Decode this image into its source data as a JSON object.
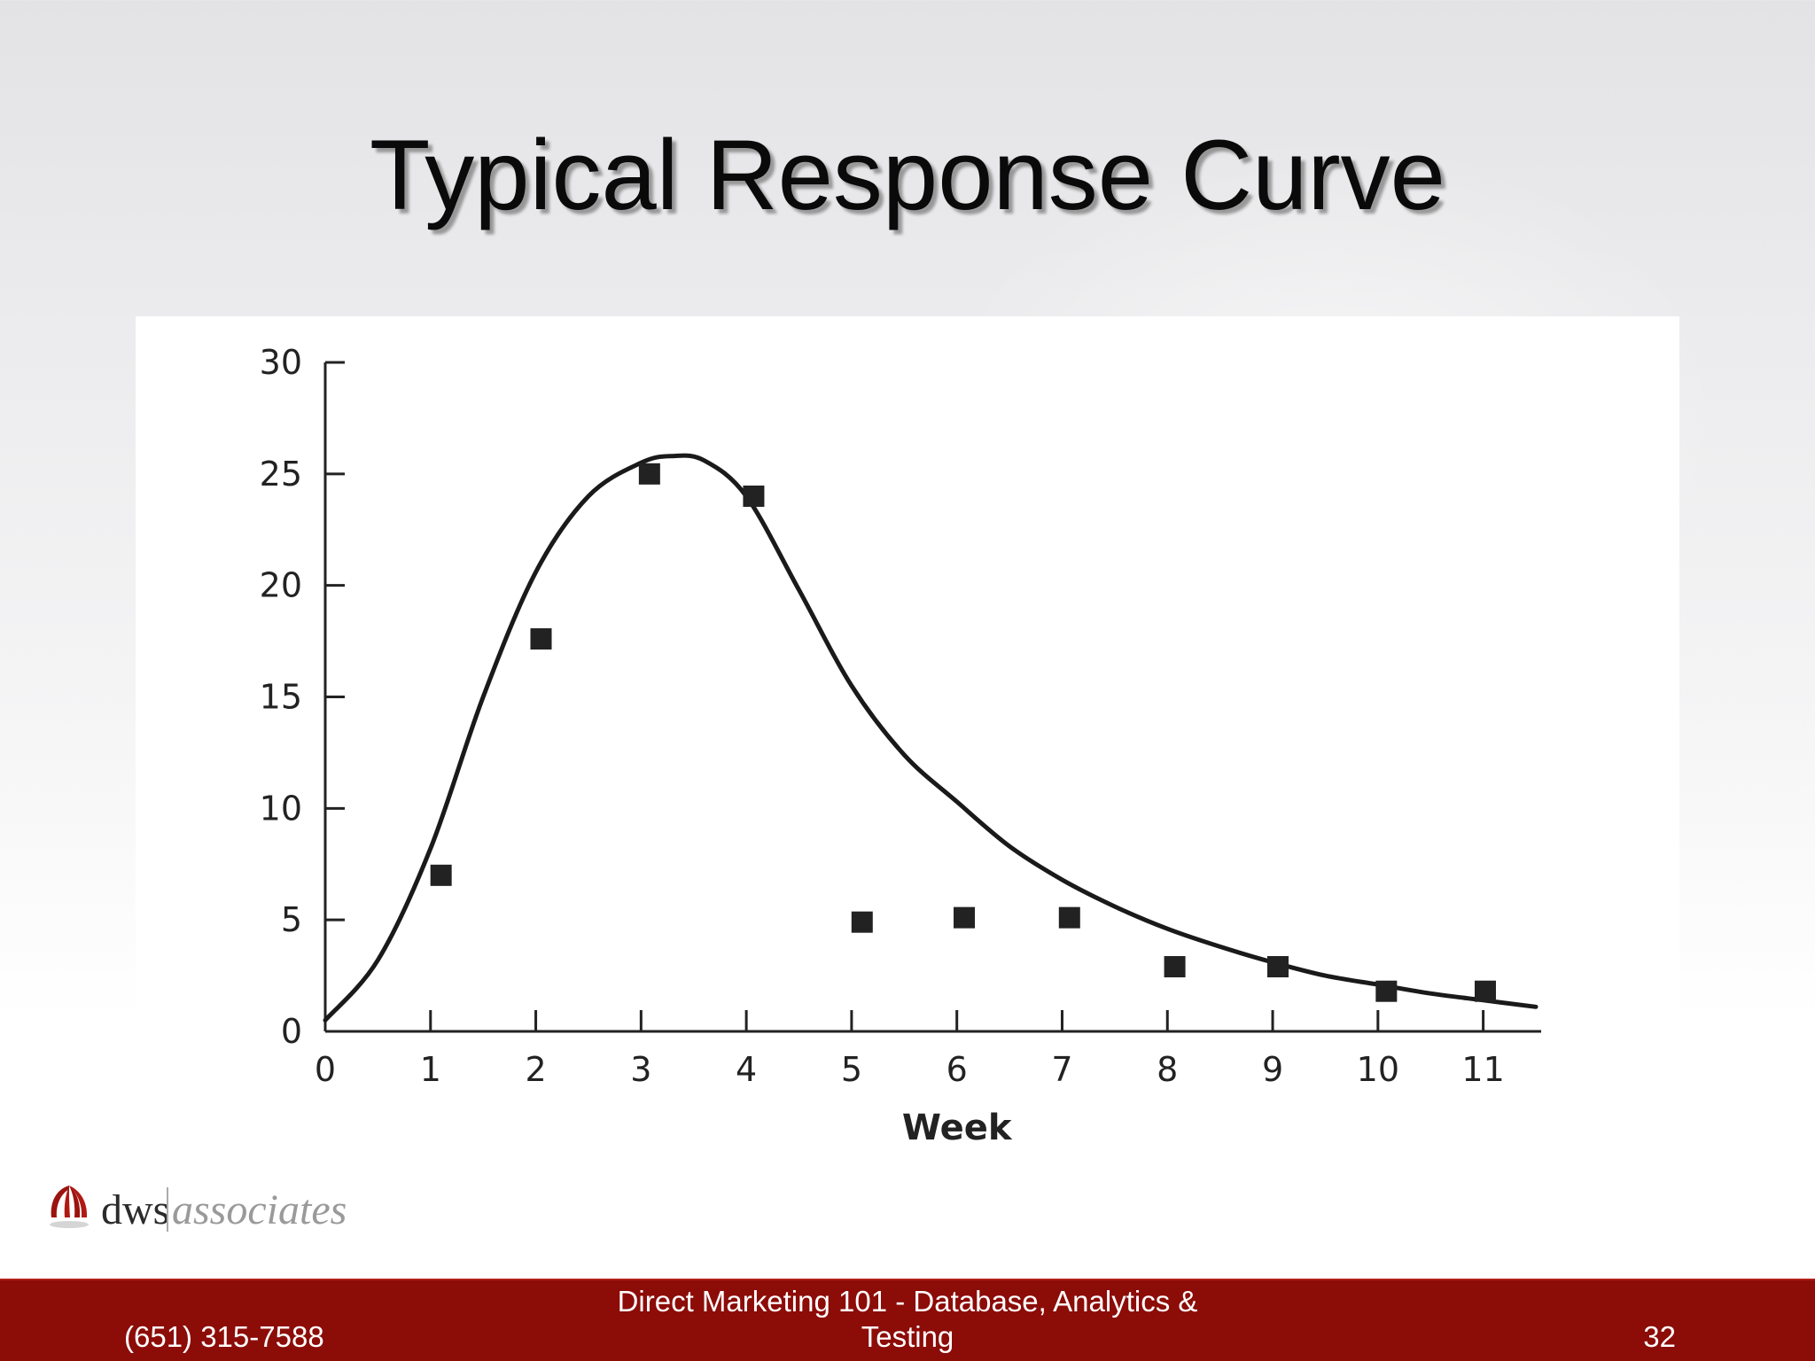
{
  "slide": {
    "title": "Typical Response Curve"
  },
  "chart_data": {
    "type": "scatter",
    "title": "",
    "xlabel": "Week",
    "ylabel": "",
    "xlim": [
      0,
      11.5
    ],
    "ylim": [
      0,
      30
    ],
    "x_ticks": [
      "0",
      "1",
      "2",
      "3",
      "4",
      "5",
      "6",
      "7",
      "8",
      "9",
      "10",
      "11"
    ],
    "y_ticks": [
      "0",
      "5",
      "10",
      "15",
      "20",
      "25",
      "30"
    ],
    "grid": false,
    "series": [
      {
        "type": "scatter",
        "marker": "square",
        "points": [
          {
            "x": 1.1,
            "y": 7
          },
          {
            "x": 2.05,
            "y": 17.6
          },
          {
            "x": 3.08,
            "y": 25
          },
          {
            "x": 4.07,
            "y": 24
          },
          {
            "x": 5.1,
            "y": 4.9
          },
          {
            "x": 6.07,
            "y": 5.1
          },
          {
            "x": 7.07,
            "y": 5.1
          },
          {
            "x": 8.07,
            "y": 2.9
          },
          {
            "x": 9.05,
            "y": 2.9
          },
          {
            "x": 10.08,
            "y": 1.8
          },
          {
            "x": 11.02,
            "y": 1.8
          }
        ]
      },
      {
        "type": "line",
        "style": "smooth",
        "points": [
          {
            "x": 0,
            "y": 0.5
          },
          {
            "x": 0.5,
            "y": 3.2
          },
          {
            "x": 1.0,
            "y": 8.2
          },
          {
            "x": 1.5,
            "y": 15.0
          },
          {
            "x": 2.0,
            "y": 20.6
          },
          {
            "x": 2.5,
            "y": 24.0
          },
          {
            "x": 3.0,
            "y": 25.5
          },
          {
            "x": 3.3,
            "y": 25.8
          },
          {
            "x": 3.6,
            "y": 25.6
          },
          {
            "x": 4.0,
            "y": 24.0
          },
          {
            "x": 4.5,
            "y": 19.8
          },
          {
            "x": 5.0,
            "y": 15.5
          },
          {
            "x": 5.5,
            "y": 12.4
          },
          {
            "x": 6.0,
            "y": 10.3
          },
          {
            "x": 6.5,
            "y": 8.3
          },
          {
            "x": 7.0,
            "y": 6.8
          },
          {
            "x": 7.5,
            "y": 5.6
          },
          {
            "x": 8.0,
            "y": 4.6
          },
          {
            "x": 8.5,
            "y": 3.8
          },
          {
            "x": 9.0,
            "y": 3.1
          },
          {
            "x": 9.5,
            "y": 2.5
          },
          {
            "x": 10.0,
            "y": 2.1
          },
          {
            "x": 10.5,
            "y": 1.7
          },
          {
            "x": 11.0,
            "y": 1.4
          },
          {
            "x": 11.5,
            "y": 1.1
          }
        ]
      }
    ],
    "colors": {
      "marker": "#222222",
      "line": "#1a1a1a",
      "axis": "#222222"
    }
  },
  "logo": {
    "primary": "dws",
    "secondary": "associates"
  },
  "footer": {
    "phone": "(651) 315-7588",
    "center_line1": "Direct Marketing 101 - Database, Analytics &",
    "center_line2": "Testing",
    "page_number": "32",
    "background_color": "#8c0c08"
  }
}
